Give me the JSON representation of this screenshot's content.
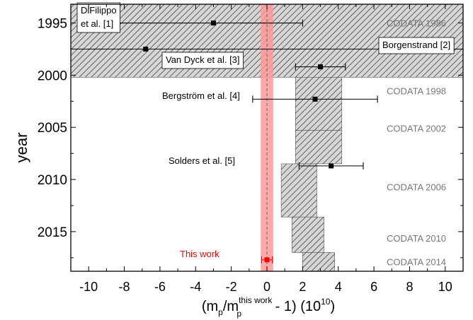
{
  "chart_data": {
    "type": "scatter",
    "xlabel": {
      "prefix": "(m",
      "sub1": "p",
      "mid": "/m",
      "sup": "this work",
      "sub2": "p",
      "suffix": " - 1) (10",
      "exp": "10",
      "end": ")"
    },
    "ylabel": "year",
    "xlim": [
      -11,
      11
    ],
    "ylim": [
      1993.2,
      2018.8
    ],
    "y_inverted": true,
    "x_ticks": [
      -10,
      -8,
      -6,
      -4,
      -2,
      0,
      2,
      4,
      6,
      8,
      10
    ],
    "x_tick_labels": [
      "-10",
      "-8",
      "-6",
      "-4",
      "-2",
      "0",
      "2",
      "4",
      "6",
      "8",
      "10"
    ],
    "y_ticks": [
      1995,
      2000,
      2005,
      2010,
      2015
    ],
    "y_tick_labels": [
      "1995",
      "2000",
      "2005",
      "2010",
      "2015"
    ],
    "measurements": [
      {
        "label": "DiFilippo",
        "label2": "et al. [1]",
        "x": -3.0,
        "xerr_low": -10.0,
        "xerr_high": 2.0,
        "year": 1995.0,
        "color": "#000000",
        "boxed": true,
        "label_side": "left"
      },
      {
        "label": "Borgenstrand [2]",
        "x": -6.8,
        "xerr_low": -11.0,
        "xerr_high": 11.0,
        "year": 1997.5,
        "color": "#000000",
        "boxed": true,
        "label_side": "right"
      },
      {
        "label": "Van Dyck et al. [3]",
        "x": 3.0,
        "xerr_low": 1.6,
        "xerr_high": 4.4,
        "year": 1999.2,
        "color": "#000000",
        "boxed": true,
        "label_side": "left"
      },
      {
        "label": "Bergström et al. [4]",
        "x": 2.7,
        "xerr_low": -0.8,
        "xerr_high": 6.2,
        "year": 2002.3,
        "color": "#000000",
        "boxed": false,
        "label_side": "left"
      },
      {
        "label": "Solders et al. [5]",
        "x": 3.6,
        "xerr_low": 1.8,
        "xerr_high": 5.4,
        "year": 2008.7,
        "color": "#000000",
        "boxed": false,
        "label_side": "left"
      },
      {
        "label": "This work",
        "x": 0.0,
        "xerr_low": -0.3,
        "xerr_high": 0.3,
        "year": 2017.7,
        "color": "#ff0000",
        "boxed": false,
        "label_side": "left"
      }
    ],
    "codata_bands": [
      {
        "label": "CODATA 1986",
        "year_start": 1993.2,
        "year_end": 2000.2,
        "x_low": -11.0,
        "x_high": 11.0
      },
      {
        "label": "CODATA 1998",
        "year_start": 2000.2,
        "year_end": 2005.3,
        "x_low": 1.6,
        "x_high": 4.2
      },
      {
        "label": "CODATA 2002",
        "year_start": 2005.3,
        "year_end": 2008.5,
        "x_low": 1.6,
        "x_high": 4.2
      },
      {
        "label": "CODATA 2006",
        "year_start": 2008.5,
        "year_end": 2013.6,
        "x_low": 0.8,
        "x_high": 2.8
      },
      {
        "label": "CODATA 2010",
        "year_start": 2013.6,
        "year_end": 2017.0,
        "x_low": 1.4,
        "x_high": 3.2
      },
      {
        "label": "CODATA 2014",
        "year_start": 2017.0,
        "year_end": 2018.8,
        "x_low": 2.0,
        "x_high": 3.8
      }
    ],
    "codata_label_years": [
      1995.0,
      2001.5,
      2005.1,
      2010.7,
      2015.6,
      2017.9
    ],
    "this_work_band": {
      "x_low": -0.35,
      "x_high": 0.35,
      "color": "#ff9999"
    },
    "colors": {
      "band_stroke": "#555555",
      "hatch": "#444444",
      "codata_text": "#777777",
      "this_work": "#ff0000"
    }
  }
}
